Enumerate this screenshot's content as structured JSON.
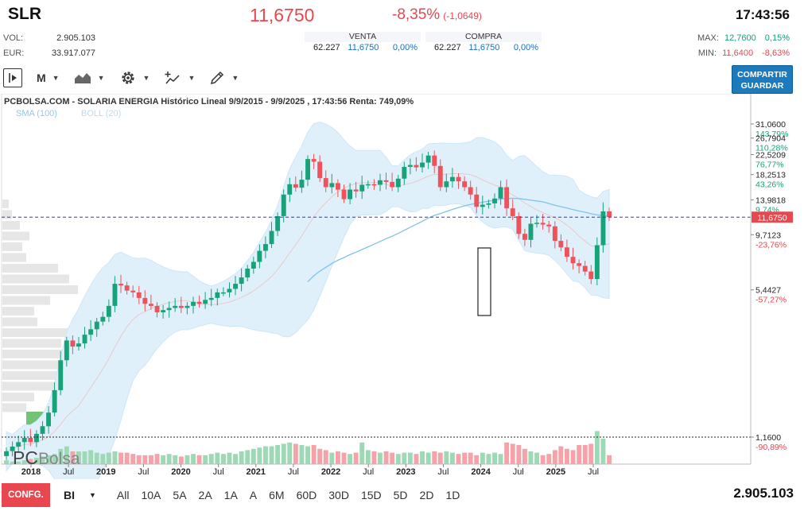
{
  "quote": {
    "ticker": "SLR",
    "price": "11,6750",
    "change_pct": "-8,35%",
    "change_abs": "(-1,0649)",
    "time": "17:43:56",
    "vol_label": "VOL:",
    "vol_value": "2.905.103",
    "eur_label": "EUR:",
    "eur_value": "33.917.077",
    "max_label": "MAX:",
    "max_value": "12,7600",
    "max_pct": "0,15%",
    "min_label": "MIN:",
    "min_value": "11,6400",
    "min_pct": "-8,63%"
  },
  "order_book": {
    "sell": {
      "header": "VENTA",
      "qty": "62.227",
      "price": "11,6750",
      "pct": "0,00%"
    },
    "buy": {
      "header": "COMPRA",
      "qty": "62.227",
      "price": "11,6750",
      "pct": "0,00%"
    }
  },
  "toolbar": {
    "period": "M",
    "share_line1": "COMPARTIR",
    "share_line2": "GUARDAR",
    "icons": [
      "play-panel-icon",
      "area-chart-icon",
      "gear-icon",
      "indicators-icon",
      "pencil-icon"
    ]
  },
  "chart": {
    "title": "PCBOLSA.COM - SOLARIA ENERGIA Histórico Lineal 9/9/2015 - 9/9/2025 , 17:43:56 Renta: 749,09%",
    "legend_sma": "SMA (100)",
    "legend_boll": "BOLL (20)",
    "watermark_a": "PC",
    "watermark_b": "Bolsa",
    "current_price_label": "11,6750"
  },
  "chart_data": {
    "type": "candlestick",
    "scale": "log",
    "ylim": [
      1.0,
      35.0
    ],
    "y_ticks": [
      {
        "value": "31,0600",
        "pct": "143,79%"
      },
      {
        "value": "26,7904",
        "pct": "110,28%"
      },
      {
        "value": "22,5209",
        "pct": "76,77%"
      },
      {
        "value": "18,2513",
        "pct": "43,26%"
      },
      {
        "value": "13,9818",
        "pct": "9,74%"
      },
      {
        "value": "9,7123",
        "pct": "-23,76%"
      },
      {
        "value": "5,4427",
        "pct": "-57,27%"
      },
      {
        "value": "1,1600",
        "pct": "-90,89%"
      }
    ],
    "x_ticks": [
      "2018",
      "Jul",
      "2019",
      "Jul",
      "2020",
      "Jul",
      "2021",
      "Jul",
      "2022",
      "Jul",
      "2023",
      "Jul",
      "2024",
      "Jul",
      "2025",
      "Jul"
    ],
    "monthly_close": [
      1.0,
      1.05,
      1.1,
      1.15,
      1.1,
      1.2,
      1.3,
      1.5,
      1.9,
      2.6,
      3.2,
      3.0,
      3.1,
      3.4,
      3.6,
      3.9,
      4.1,
      4.6,
      5.8,
      5.7,
      5.4,
      5.3,
      5.0,
      4.7,
      4.6,
      4.3,
      4.4,
      4.5,
      4.6,
      4.5,
      4.6,
      4.8,
      4.7,
      4.9,
      5.0,
      5.3,
      5.3,
      5.5,
      5.8,
      6.2,
      6.8,
      7.3,
      8.2,
      8.8,
      10.1,
      11.8,
      14.8,
      16.5,
      15.9,
      17.3,
      21.5,
      20.9,
      17.6,
      16.0,
      16.7,
      15.6,
      14.1,
      15.6,
      15.3,
      16.4,
      16.5,
      16.4,
      17.2,
      16.9,
      16.0,
      17.5,
      19.8,
      20.2,
      19.7,
      20.7,
      22.3,
      20.0,
      16.0,
      17.0,
      17.8,
      17.0,
      16.0,
      14.8,
      13.0,
      13.3,
      13.5,
      14.2,
      16.0,
      12.8,
      11.8,
      9.8,
      9.2,
      10.9,
      11.0,
      10.8,
      10.6,
      9.1,
      8.5,
      7.7,
      7.2,
      7.0,
      6.6,
      6.1,
      8.7,
      12.4,
      11.675
    ],
    "volume_relative": [
      0.15,
      0.1,
      0.1,
      0.15,
      0.2,
      0.25,
      0.3,
      0.35,
      0.4,
      0.6,
      0.7,
      0.5,
      0.5,
      0.5,
      0.55,
      0.45,
      0.4,
      0.45,
      0.5,
      0.45,
      0.45,
      0.4,
      0.35,
      0.35,
      0.35,
      0.4,
      0.35,
      0.4,
      0.35,
      0.3,
      0.35,
      0.4,
      0.35,
      0.35,
      0.4,
      0.45,
      0.4,
      0.45,
      0.4,
      0.5,
      0.55,
      0.6,
      0.65,
      0.7,
      0.7,
      0.75,
      0.8,
      0.85,
      0.8,
      0.75,
      0.7,
      0.75,
      0.6,
      0.55,
      0.45,
      0.5,
      0.45,
      0.4,
      0.45,
      0.85,
      0.55,
      0.5,
      0.45,
      0.5,
      0.45,
      0.4,
      0.45,
      0.45,
      0.4,
      0.5,
      0.45,
      0.5,
      0.45,
      0.5,
      0.45,
      0.4,
      0.45,
      0.45,
      0.35,
      0.45,
      0.4,
      0.45,
      0.4,
      0.85,
      0.8,
      0.75,
      0.6,
      0.5,
      0.45,
      0.35,
      0.4,
      0.55,
      0.7,
      0.6,
      0.55,
      0.75,
      0.75,
      0.8,
      1.3,
      1.0,
      0.35
    ]
  },
  "bottom_bar": {
    "config_label": "CONFG.",
    "period_value": "BI",
    "ranges": [
      "All",
      "10A",
      "5A",
      "2A",
      "1A",
      "A",
      "6M",
      "60D",
      "30D",
      "15D",
      "5D",
      "2D",
      "1D"
    ],
    "volume_total": "2.905.103"
  },
  "colors": {
    "up": "#17a27a",
    "down": "#f0525b",
    "boll_fill": "#dff0fb",
    "sma": "#7ec3ec",
    "accent": "#1d7bbd"
  }
}
